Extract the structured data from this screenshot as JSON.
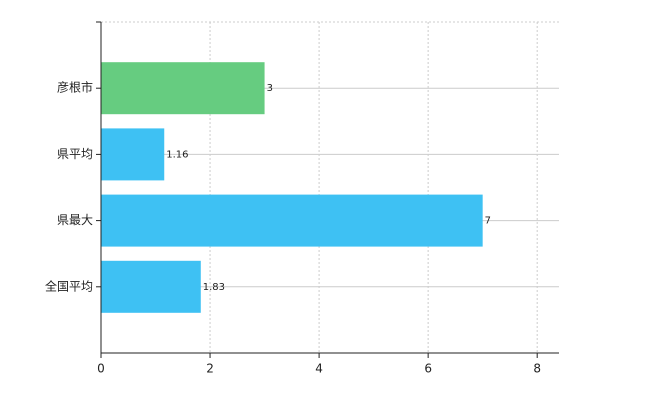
{
  "chart_data": {
    "type": "bar",
    "orientation": "horizontal",
    "categories": [
      "彦根市",
      "県平均",
      "県最大",
      "全国平均"
    ],
    "values": [
      3,
      1.16,
      7,
      1.83
    ],
    "colors": [
      "#66cc80",
      "#3ec1f3",
      "#3ec1f3",
      "#3ec1f3"
    ],
    "xlim": [
      0,
      8.4
    ],
    "xticks": [
      0,
      2,
      4,
      6,
      8
    ],
    "grid": true
  }
}
